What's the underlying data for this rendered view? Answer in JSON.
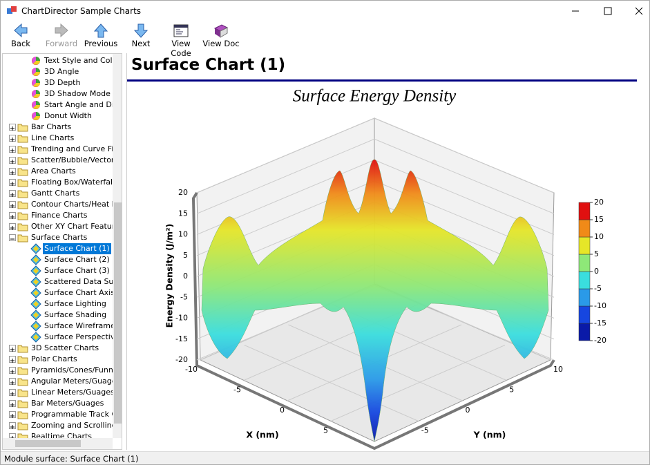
{
  "window": {
    "title": "ChartDirector Sample Charts"
  },
  "toolbar": {
    "buttons": [
      "Back",
      "Forward",
      "Previous",
      "Next",
      "View Code",
      "View Doc"
    ]
  },
  "tree": {
    "leading_items": [
      "Text Style and Colors",
      "3D Angle",
      "3D Depth",
      "3D Shadow Mode",
      "Start Angle and Direction",
      "Donut Width"
    ],
    "folders_before": [
      "Bar Charts",
      "Line Charts",
      "Trending and Curve Fitting",
      "Scatter/Bubble/Vector Charts",
      "Area Charts",
      "Floating Box/Waterfall Charts",
      "Gantt Charts",
      "Contour Charts/Heat Maps",
      "Finance Charts",
      "Other XY Chart Features"
    ],
    "open_folder": {
      "label": "Surface Charts",
      "items": [
        "Surface Chart (1)",
        "Surface Chart (2)",
        "Surface Chart (3)",
        "Scattered Data Surface",
        "Surface Chart Axis Types",
        "Surface Lighting",
        "Surface Shading",
        "Surface Wireframe",
        "Surface Perspective"
      ]
    },
    "folders_after": [
      "3D Scatter Charts",
      "Polar Charts",
      "Pyramids/Cones/Funnels",
      "Angular Meters/Guages",
      "Linear Meters/Guages",
      "Bar Meters/Guages",
      "Programmable Track Cursor",
      "Zooming and Scrolling",
      "Realtime Charts"
    ]
  },
  "content": {
    "heading": "Surface Chart (1)"
  },
  "chart_data": {
    "type": "surface",
    "title": "Surface Energy Density",
    "z_label": "Energy Density (J/m²)",
    "zlim": [
      -20,
      20
    ],
    "zticks": [
      -20,
      -15,
      -10,
      -5,
      0,
      5,
      10,
      15,
      20
    ],
    "x_label": "X (nm)",
    "xlim": [
      -10,
      10
    ],
    "xticks": [
      -10,
      -5,
      0,
      5
    ],
    "y_label": "Y (nm)",
    "ylim": [
      -10,
      10
    ],
    "yticks": [
      -5,
      0,
      5,
      10
    ],
    "legend": {
      "ticks": [
        -20,
        -15,
        -10,
        -5,
        0,
        5,
        10,
        15,
        20
      ],
      "colors": [
        "#0a1aa8",
        "#1646e0",
        "#2a9ae8",
        "#3adede",
        "#8ee878",
        "#e6e628",
        "#f08a18",
        "#e01010"
      ]
    }
  },
  "status": {
    "text": "Module surface: Surface Chart (1)"
  }
}
